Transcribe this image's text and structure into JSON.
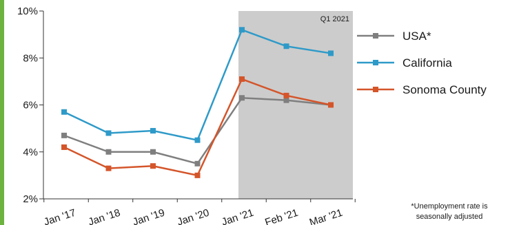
{
  "chart_data": {
    "type": "line",
    "categories": [
      "Jan '17",
      "Jan '18",
      "Jan '19",
      "Jan '20",
      "Jan '21",
      "Feb '21",
      "Mar '21"
    ],
    "y_ticks": [
      "2%",
      "4%",
      "6%",
      "8%",
      "10%"
    ],
    "ylim": [
      2,
      10
    ],
    "series": [
      {
        "name": "USA*",
        "color": "#7f7f7f",
        "values": [
          4.7,
          4.0,
          4.0,
          3.5,
          6.3,
          6.2,
          6.0
        ]
      },
      {
        "name": "California",
        "color": "#2e9ac8",
        "values": [
          5.7,
          4.8,
          4.9,
          4.5,
          9.2,
          8.5,
          8.2
        ]
      },
      {
        "name": "Sonoma County",
        "color": "#d4552a",
        "values": [
          4.2,
          3.3,
          3.4,
          3.0,
          7.1,
          6.4,
          6.0
        ]
      }
    ],
    "highlight": {
      "label": "Q1 2021",
      "from_category": "Jan '21",
      "to_category": "Mar '21",
      "color": "#cccccc"
    },
    "footnote": [
      "*Unemployment rate is",
      "seasonally adjusted"
    ],
    "legend_position": "right",
    "grid": false
  },
  "colors": {
    "accent_bar": "#6db33f",
    "axis": "#333333"
  }
}
